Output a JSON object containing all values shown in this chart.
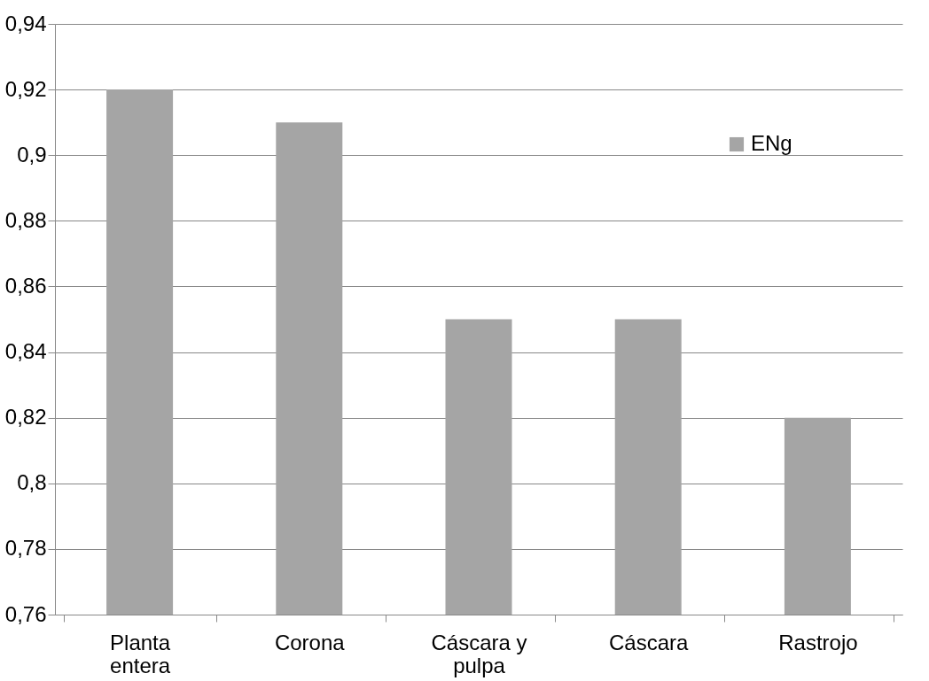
{
  "chart_data": {
    "type": "bar",
    "categories": [
      "Planta entera",
      "Corona",
      "Cáscara y pulpa",
      "Cáscara",
      "Rastrojo"
    ],
    "series": [
      {
        "name": "ENg",
        "color": "#a5a5a5",
        "values": [
          0.92,
          0.91,
          0.85,
          0.85,
          0.82
        ]
      }
    ],
    "ylim": [
      0.76,
      0.94
    ],
    "yticks": [
      {
        "value": 0.76,
        "label": "0,76"
      },
      {
        "value": 0.78,
        "label": "0,78"
      },
      {
        "value": 0.8,
        "label": "0,8"
      },
      {
        "value": 0.82,
        "label": "0,82"
      },
      {
        "value": 0.84,
        "label": "0,84"
      },
      {
        "value": 0.86,
        "label": "0,86"
      },
      {
        "value": 0.88,
        "label": "0,88"
      },
      {
        "value": 0.9,
        "label": "0,9"
      },
      {
        "value": 0.92,
        "label": "0,92"
      },
      {
        "value": 0.94,
        "label": "0,94"
      }
    ],
    "grid": "y",
    "legend": "top right"
  }
}
